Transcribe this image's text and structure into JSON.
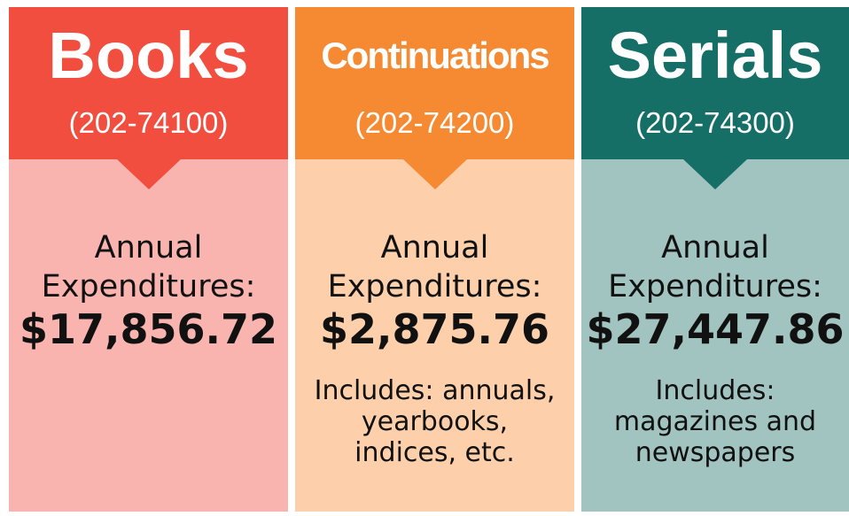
{
  "cards": [
    {
      "title": "Books",
      "code": "(202-74100)",
      "label": [
        "Annual",
        "Expenditures:"
      ],
      "amount": "$17,856.72",
      "note": []
    },
    {
      "title": "Continuations",
      "code": "(202-74200)",
      "label": [
        "Annual",
        "Expenditures:"
      ],
      "amount": "$2,875.76",
      "note": [
        "Includes: annuals,",
        "yearbooks,",
        "indices, etc."
      ]
    },
    {
      "title": "Serials",
      "code": "(202-74300)",
      "label": [
        "Annual",
        "Expenditures:"
      ],
      "amount": "$27,447.86",
      "note": [
        "Includes:",
        "magazines and",
        "newspapers"
      ]
    }
  ]
}
